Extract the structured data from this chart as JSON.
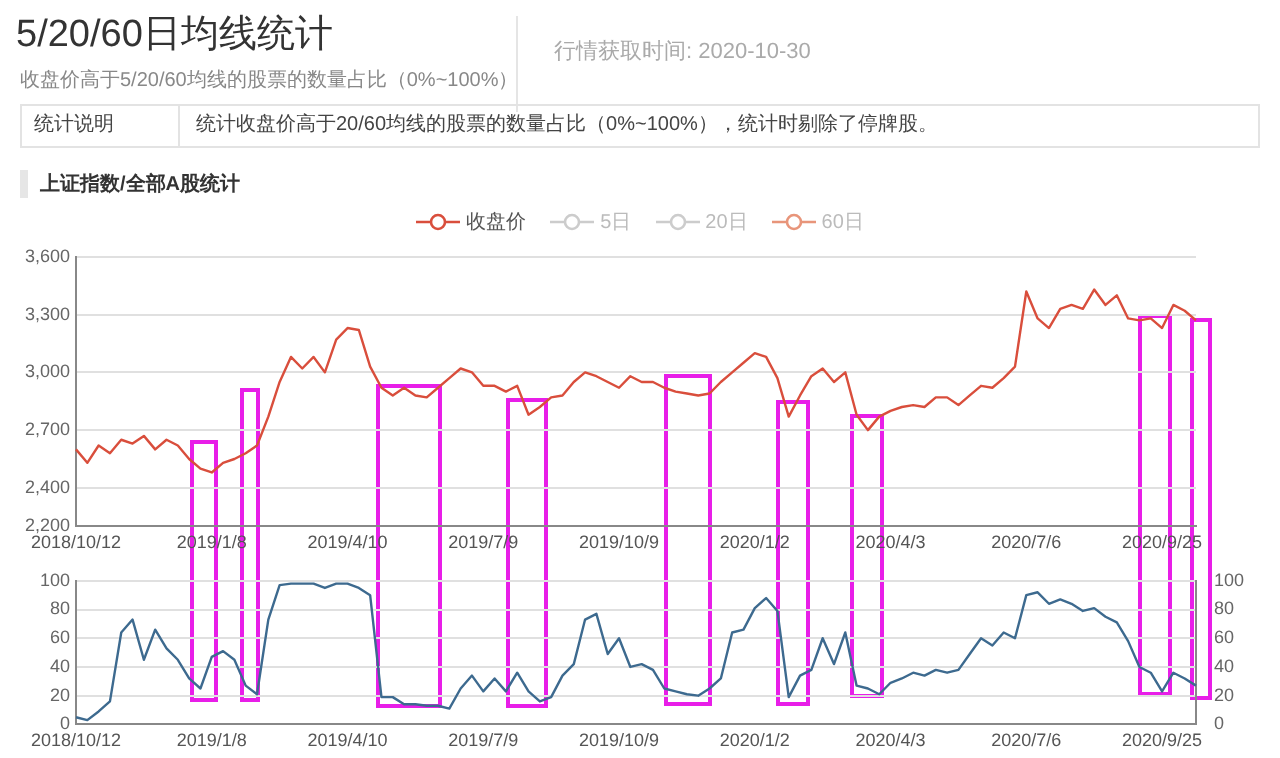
{
  "chart_data": [
    {
      "type": "line",
      "title": "5/20/60日均线统计",
      "subtitle": "收盘价高于5/20/60均线的股票的数量占比（0%~100%）",
      "annotations": [
        "行情获取时间: 2020-10-30",
        "统计说明",
        "统计收盘价高于20/60均线的股票的数量占比（0%~100%），统计时剔除了停牌股。",
        "上证指数/全部A股统计"
      ],
      "categories": [
        "2018/10/12",
        null,
        null,
        null,
        null,
        null,
        null,
        null,
        null,
        null,
        null,
        null,
        "2019/1/8",
        null,
        null,
        null,
        null,
        null,
        null,
        null,
        null,
        null,
        null,
        null,
        "2019/4/10",
        null,
        null,
        null,
        null,
        null,
        null,
        null,
        null,
        null,
        null,
        null,
        "2019/7/9",
        null,
        null,
        null,
        null,
        null,
        null,
        null,
        null,
        null,
        null,
        null,
        "2019/10/9",
        null,
        null,
        null,
        null,
        null,
        null,
        null,
        null,
        null,
        null,
        null,
        "2020/1/2",
        null,
        null,
        null,
        null,
        null,
        null,
        null,
        null,
        null,
        null,
        null,
        "2020/4/3",
        null,
        null,
        null,
        null,
        null,
        null,
        null,
        null,
        null,
        null,
        null,
        "2020/7/6",
        null,
        null,
        null,
        null,
        null,
        null,
        null,
        null,
        null,
        null,
        null,
        "2020/9/25",
        null,
        null,
        null
      ],
      "series": [
        {
          "name": "收盘价",
          "color": "#d94e3c",
          "values": [
            2600,
            2530,
            2620,
            2580,
            2650,
            2630,
            2670,
            2600,
            2650,
            2620,
            2550,
            2500,
            2480,
            2530,
            2550,
            2580,
            2620,
            2770,
            2950,
            3080,
            3020,
            3080,
            3000,
            3170,
            3230,
            3220,
            3030,
            2920,
            2880,
            2920,
            2880,
            2870,
            2920,
            2970,
            3020,
            3000,
            2930,
            2930,
            2900,
            2930,
            2780,
            2820,
            2870,
            2880,
            2950,
            3000,
            2980,
            2950,
            2920,
            2980,
            2950,
            2950,
            2920,
            2900,
            2890,
            2880,
            2890,
            2950,
            3000,
            3050,
            3100,
            3080,
            2970,
            2770,
            2880,
            2980,
            3020,
            2950,
            3000,
            2780,
            2700,
            2770,
            2800,
            2820,
            2830,
            2820,
            2870,
            2870,
            2830,
            2880,
            2930,
            2920,
            2970,
            3030,
            3420,
            3280,
            3230,
            3330,
            3350,
            3330,
            3430,
            3350,
            3400,
            3280,
            3270,
            3280,
            3230,
            3350,
            3320,
            3270
          ]
        },
        {
          "name": "5日",
          "color": "#cccccc",
          "values": [
            null,
            null,
            null,
            null,
            null,
            null,
            null,
            null,
            null,
            null,
            null,
            null,
            null,
            null,
            null,
            null,
            null,
            null,
            null,
            null,
            null,
            null,
            null,
            null,
            null,
            null,
            null,
            null,
            null,
            null,
            null,
            null,
            null,
            null,
            null,
            null,
            null,
            null,
            null,
            null,
            null,
            null,
            null,
            null,
            null,
            null,
            null,
            null,
            null,
            null,
            null,
            null,
            null,
            null,
            null,
            null,
            null,
            null,
            null,
            null,
            null,
            null,
            null,
            null,
            null,
            null,
            null,
            null,
            null,
            null,
            null,
            null,
            null,
            null,
            null,
            null,
            null,
            null,
            null,
            null,
            null,
            null,
            null,
            null,
            null,
            null,
            null,
            null,
            null,
            null,
            null,
            null,
            null,
            null,
            null,
            null,
            null,
            null,
            null,
            null
          ]
        },
        {
          "name": "20日",
          "color": "#cccccc",
          "values": [
            null,
            null,
            null,
            null,
            null,
            null,
            null,
            null,
            null,
            null,
            null,
            null,
            null,
            null,
            null,
            null,
            null,
            null,
            null,
            null,
            null,
            null,
            null,
            null,
            null,
            null,
            null,
            null,
            null,
            null,
            null,
            null,
            null,
            null,
            null,
            null,
            null,
            null,
            null,
            null,
            null,
            null,
            null,
            null,
            null,
            null,
            null,
            null,
            null,
            null,
            null,
            null,
            null,
            null,
            null,
            null,
            null,
            null,
            null,
            null,
            null,
            null,
            null,
            null,
            null,
            null,
            null,
            null,
            null,
            null,
            null,
            null,
            null,
            null,
            null,
            null,
            null,
            null,
            null,
            null,
            null,
            null,
            null,
            null,
            null,
            null,
            null,
            null,
            null,
            null,
            null,
            null,
            null,
            null,
            null,
            null,
            null,
            null,
            null,
            null
          ]
        },
        {
          "name": "60日",
          "color": "#e8957a",
          "values": [
            null,
            null,
            null,
            null,
            null,
            null,
            null,
            null,
            null,
            null,
            null,
            null,
            null,
            null,
            null,
            null,
            null,
            null,
            null,
            null,
            null,
            null,
            null,
            null,
            null,
            null,
            null,
            null,
            null,
            null,
            null,
            null,
            null,
            null,
            null,
            null,
            null,
            null,
            null,
            null,
            null,
            null,
            null,
            null,
            null,
            null,
            null,
            null,
            null,
            null,
            null,
            null,
            null,
            null,
            null,
            null,
            null,
            null,
            null,
            null,
            null,
            null,
            null,
            null,
            null,
            null,
            null,
            null,
            null,
            null,
            null,
            null,
            null,
            null,
            null,
            null,
            null,
            null,
            null,
            null,
            null,
            null,
            null,
            null,
            null,
            null,
            null,
            null,
            null,
            null,
            null,
            null,
            null,
            null,
            null,
            null,
            null,
            null,
            null,
            null
          ]
        }
      ],
      "ylim": [
        2200,
        3600
      ],
      "yticks": [
        {
          "value": 2200,
          "label": "2,200"
        },
        {
          "value": 2400,
          "label": "2,400"
        },
        {
          "value": 2700,
          "label": "2,700"
        },
        {
          "value": 3000,
          "label": "3,000"
        },
        {
          "value": 3300,
          "label": "3,300"
        },
        {
          "value": 3600,
          "label": "3,600"
        }
      ],
      "grid": "y",
      "legend": "top",
      "marker": "none"
    },
    {
      "type": "line",
      "categories": [
        "2018/10/12",
        null,
        null,
        null,
        null,
        null,
        null,
        null,
        null,
        null,
        null,
        null,
        "2019/1/8",
        null,
        null,
        null,
        null,
        null,
        null,
        null,
        null,
        null,
        null,
        null,
        "2019/4/10",
        null,
        null,
        null,
        null,
        null,
        null,
        null,
        null,
        null,
        null,
        null,
        "2019/7/9",
        null,
        null,
        null,
        null,
        null,
        null,
        null,
        null,
        null,
        null,
        null,
        "2019/10/9",
        null,
        null,
        null,
        null,
        null,
        null,
        null,
        null,
        null,
        null,
        null,
        "2020/1/2",
        null,
        null,
        null,
        null,
        null,
        null,
        null,
        null,
        null,
        null,
        null,
        "2020/4/3",
        null,
        null,
        null,
        null,
        null,
        null,
        null,
        null,
        null,
        null,
        null,
        "2020/7/6",
        null,
        null,
        null,
        null,
        null,
        null,
        null,
        null,
        null,
        null,
        null,
        "2020/9/25",
        null,
        null,
        null
      ],
      "series": [
        {
          "color": "#3d6a8f",
          "values": [
            5,
            3,
            9,
            16,
            64,
            73,
            45,
            66,
            53,
            45,
            32,
            25,
            47,
            51,
            45,
            27,
            21,
            73,
            97,
            98,
            98,
            98,
            95,
            98,
            98,
            95,
            90,
            19,
            19,
            14,
            14,
            13,
            13,
            11,
            25,
            34,
            23,
            32,
            23,
            36,
            23,
            16,
            19,
            34,
            42,
            73,
            77,
            49,
            60,
            40,
            42,
            38,
            25,
            23,
            21,
            20,
            25,
            32,
            64,
            66,
            81,
            88,
            79,
            19,
            34,
            38,
            60,
            42,
            64,
            27,
            25,
            21,
            29,
            32,
            36,
            34,
            38,
            36,
            38,
            49,
            60,
            55,
            64,
            60,
            90,
            92,
            84,
            87,
            84,
            79,
            81,
            75,
            71,
            58,
            40,
            36,
            23,
            36,
            32,
            27
          ]
        }
      ],
      "ylim": [
        0,
        100
      ],
      "yticks": [
        0,
        20,
        40,
        60,
        80,
        100
      ],
      "y2lim": [
        0,
        100
      ],
      "y2ticks": [
        0,
        20,
        40,
        60,
        80,
        100
      ],
      "grid": "y",
      "marker": "none"
    }
  ]
}
